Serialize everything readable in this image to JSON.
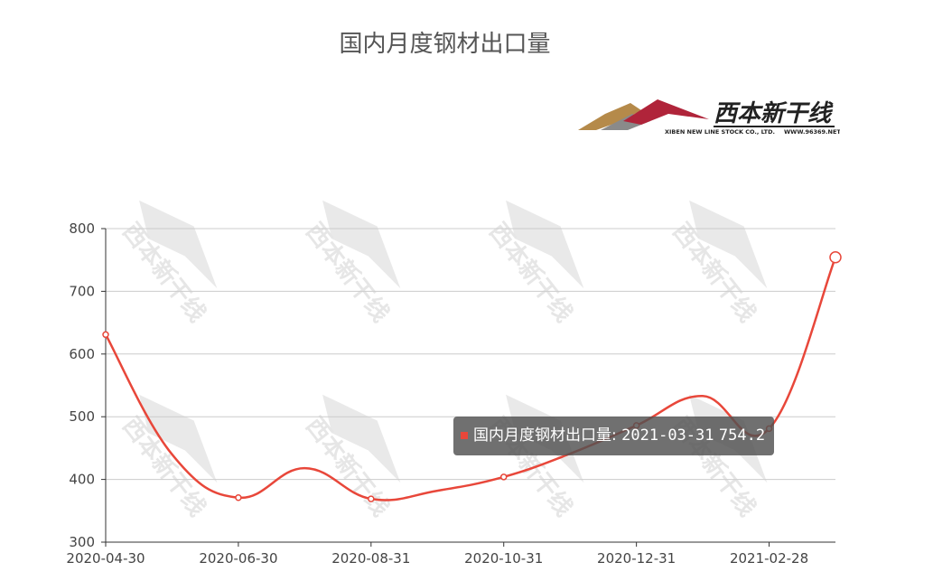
{
  "colors": {
    "line": "#e8473a",
    "axis": "#333333",
    "grid": "#cccccc",
    "tooltip_bg": "#505050"
  },
  "logo": {
    "name": "西本新干线",
    "subtitle": "XIBEN NEW LINE STOCK CO., LTD.",
    "url": "WWW.96369.NET"
  },
  "watermark": "西本新干线",
  "tooltip": {
    "series": "国内月度钢材出口量:",
    "date": "2021-03-31",
    "value": "754.2"
  },
  "chart_data": {
    "type": "line",
    "title": "国内月度钢材出口量",
    "xlabel": "",
    "ylabel": "",
    "ylim": [
      300,
      800
    ],
    "yticks": [
      300,
      400,
      500,
      600,
      700,
      800
    ],
    "xtick_labels": [
      "2020-04-30",
      "2020-06-30",
      "2020-08-31",
      "2020-10-31",
      "2020-12-31",
      "2021-02-28"
    ],
    "grid": true,
    "series": [
      {
        "name": "国内月度钢材出口量",
        "x": [
          "2020-04-30",
          "2020-05-31",
          "2020-06-30",
          "2020-07-31",
          "2020-08-31",
          "2020-09-30",
          "2020-10-31",
          "2020-11-30",
          "2020-12-31",
          "2021-01-31",
          "2021-02-28",
          "2021-03-31"
        ],
        "values": [
          631,
          440,
          371,
          418,
          369,
          382,
          404,
          441,
          486,
          533,
          481,
          754.2
        ]
      }
    ]
  }
}
